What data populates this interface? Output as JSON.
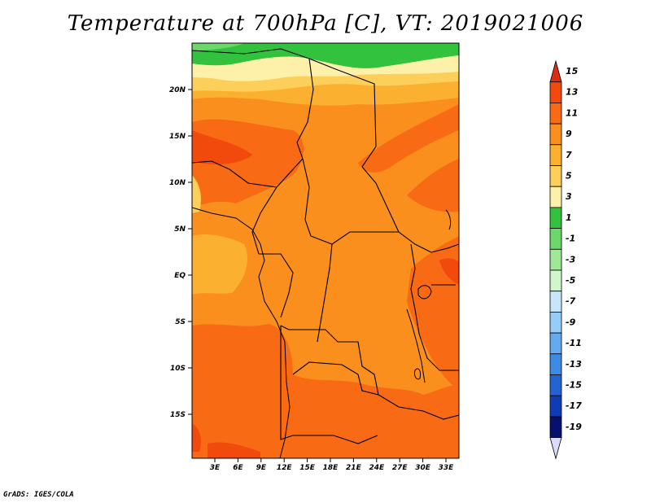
{
  "title": "Temperature at 700hPa [C], VT: 2019021006",
  "credit": "GrADS: IGES/COLA",
  "map": {
    "lat_labels": [
      "20N",
      "15N",
      "10N",
      "5N",
      "EQ",
      "5S",
      "10S",
      "15S"
    ],
    "lon_labels": [
      "3E",
      "6E",
      "9E",
      "12E",
      "15E",
      "18E",
      "21E",
      "24E",
      "27E",
      "30E",
      "33E"
    ]
  },
  "colorbar": {
    "labels": [
      "15",
      "13",
      "11",
      "9",
      "7",
      "5",
      "3",
      "1",
      "-1",
      "-3",
      "-5",
      "-7",
      "-9",
      "-11",
      "-13",
      "-15",
      "-17",
      "-19"
    ],
    "colors": [
      "#dc2d14",
      "#f24a0c",
      "#f86a14",
      "#fa8f1e",
      "#fbb030",
      "#fccf5a",
      "#fdf0a8",
      "#32c23e",
      "#6cd76a",
      "#9ee896",
      "#d2f6cc",
      "#c8e6fa",
      "#96cdf6",
      "#64aaf0",
      "#3c8ce6",
      "#2264d2",
      "#0f3cb4",
      "#08106e",
      "#dcdcf8"
    ]
  }
}
